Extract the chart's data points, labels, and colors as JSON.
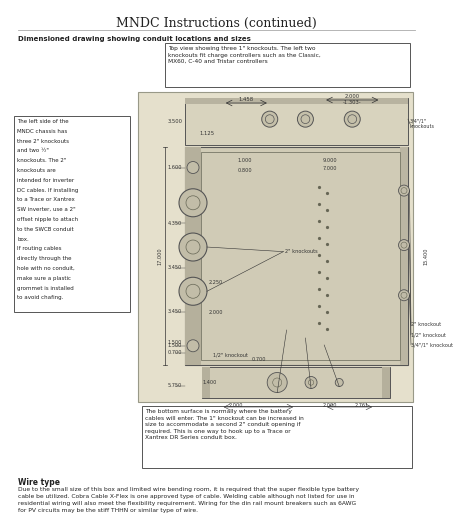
{
  "title": "MNDC Instructions (continued)",
  "section_label": "Dimensioned drawing showing conduit locations and sizes",
  "top_callout": "Top view showing three 1\" knockouts. The left two\nknockouts fit charge controllers such as the Classic,\nMX60, C-40 and Tristar controllers",
  "left_callout_lines": [
    "The left side of the",
    "MNDC chassis has",
    "three 2\" knockouts",
    "and two ½\"",
    "knockouts. The 2\"",
    "knockouts are",
    "intended for inverter",
    "DC cables. If installing",
    "to a Trace or Xantrex",
    "SW inverter, use a 2\"",
    "offset nipple to attach",
    "to the SWCB conduit",
    "box.",
    "If routing cables",
    "directly through the",
    "hole with no conduit,",
    "make sure a plastic",
    "grommet is installed",
    "to avoid chafing."
  ],
  "bottom_callout": "The bottom surface is normally where the battery\ncables will enter. The 1\" knockout can be increased in\nsize to accommodate a second 2\" conduit opening if\nrequired. This is one way to hook up to a Trace or\nXantrex DR Series conduit box.",
  "wire_type_title": "Wire type",
  "wire_type_text": "Due to the small size of this box and limited wire bending room, it is required that the super flexible type battery\ncable be utilized. Cobra Cable X-Flex is one approved type of cable. Welding cable although not listed for use in\nresidential wiring will also meet the flexibility requirement. Wiring for the din rail mount breakers such as 6AWG\nfor PV circuits may be the stiff THHN or similar type of wire.",
  "bg_color": "#ffffff",
  "drawing_bg": "#e5e0cc",
  "border_color": "#666666",
  "text_color": "#222222",
  "dim_color": "#333333"
}
